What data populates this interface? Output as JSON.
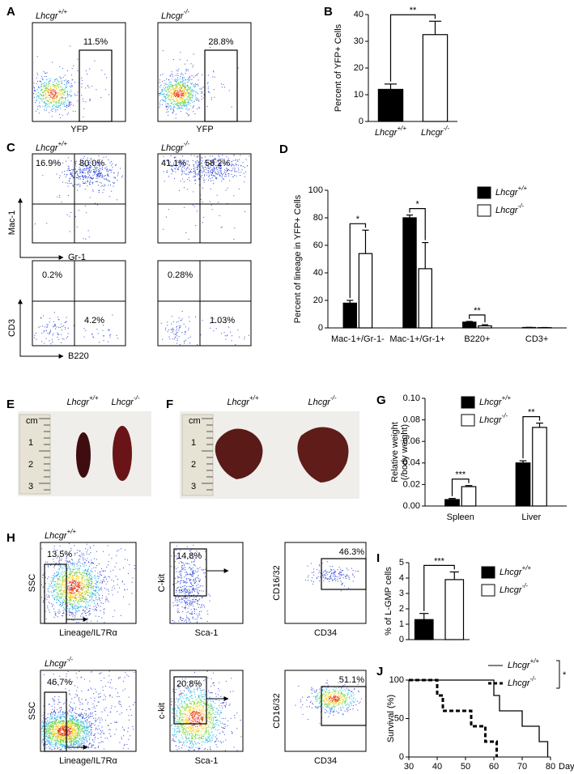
{
  "panel_labels": [
    "A",
    "B",
    "C",
    "D",
    "E",
    "F",
    "G",
    "H",
    "I",
    "J"
  ],
  "panel_a": {
    "genotypes": [
      "Lhcgr+/+",
      "Lhcgr-/-"
    ],
    "gates": [
      "11.5%",
      "28.8%"
    ],
    "x_label": "YFP"
  },
  "panel_c": {
    "genotypes": [
      "Lhcgr+/+",
      "Lhcgr-/-"
    ],
    "top": {
      "y_label": "Mac-1",
      "x_label": "Gr-1",
      "quadrants": [
        [
          "16.9%",
          "80.0%"
        ],
        [
          "41.1%",
          "58.2%"
        ]
      ]
    },
    "bottom": {
      "y_label": "CD3",
      "x_label": "B220",
      "quadrants": [
        [
          "0.2%",
          "4.2%"
        ],
        [
          "0.28%",
          "1.03%"
        ]
      ]
    }
  },
  "panel_e": {
    "genotypes": [
      "Lhcgr+/+",
      "Lhcgr-/-"
    ],
    "ruler": [
      "cm",
      "1",
      "2",
      "3"
    ]
  },
  "panel_f": {
    "genotypes": [
      "Lhcgr+/+",
      "Lhcgr-/-"
    ],
    "ruler": [
      "cm",
      "1",
      "2",
      "3"
    ]
  },
  "panel_h": {
    "rows": [
      {
        "genotype": "Lhcgr+/+",
        "plots": [
          {
            "gate": "13.5%",
            "x_label": "Lineage/IL7Rα",
            "y_label": "SSC"
          },
          {
            "gate": "14.8%",
            "x_label": "Sca-1",
            "y_label": "C-kit"
          },
          {
            "gate": "46.3%",
            "x_label": "CD34",
            "y_label": "CD16/32"
          }
        ]
      },
      {
        "genotype": "Lhcgr-/-",
        "plots": [
          {
            "gate": "46.7%",
            "x_label": "Lineage/IL7Rα",
            "y_label": "SSC"
          },
          {
            "gate": "20.8%",
            "x_label": "Sca-1",
            "y_label": "c-kit"
          },
          {
            "gate": "51.1%",
            "x_label": "CD34",
            "y_label": "CD16/32"
          }
        ]
      }
    ]
  },
  "chart_data": [
    {
      "type": "bar",
      "ylabel": "Percent of YFP+ Cells",
      "categories": [
        "Lhcgr+/+",
        "Lhcgr-/-"
      ],
      "values": [
        12,
        32.5
      ],
      "errors": [
        2,
        5
      ],
      "colors": [
        "#000000",
        "#ffffff"
      ],
      "ylim": [
        0,
        40
      ],
      "yticks": [
        0,
        10,
        20,
        30,
        40
      ],
      "significance": [
        "**"
      ]
    },
    {
      "type": "bar",
      "ylabel": "Percent of lineage in YFP+ Cells",
      "categories": [
        "Mac-1+/Gr-1-",
        "Mac-1+/Gr-1+",
        "B220+",
        "CD3+"
      ],
      "series": [
        {
          "name": "Lhcgr+/+",
          "color": "#000000",
          "values": [
            18,
            80,
            4.2,
            0.3
          ],
          "errors": [
            2,
            2,
            0.5,
            0.1
          ]
        },
        {
          "name": "Lhcgr-/-",
          "color": "#ffffff",
          "values": [
            54,
            43,
            1.5,
            0.2
          ],
          "errors": [
            17,
            19,
            0.8,
            0.1
          ]
        }
      ],
      "ylim": [
        0,
        100
      ],
      "yticks": [
        0,
        20,
        40,
        60,
        80,
        100
      ],
      "significance": [
        "*",
        "*",
        "**"
      ],
      "legend": "upper right"
    },
    {
      "type": "bar",
      "ylabel": [
        "Relative weight",
        "(/body weight)"
      ],
      "categories": [
        "Spleen",
        "Liver"
      ],
      "series": [
        {
          "name": "Lhcgr+/+",
          "color": "#000000",
          "values": [
            0.006,
            0.04
          ],
          "errors": [
            0.001,
            0.002
          ]
        },
        {
          "name": "Lhcgr-/-",
          "color": "#ffffff",
          "values": [
            0.018,
            0.073
          ],
          "errors": [
            0.001,
            0.004
          ]
        }
      ],
      "ylim": [
        0,
        0.1
      ],
      "yticks": [
        {
          "value": 0,
          "label": "0.00"
        },
        0.02,
        0.04,
        0.06,
        0.08,
        {
          "value": 0.1,
          "label": "0.10"
        }
      ],
      "significance": [
        "***",
        "**"
      ],
      "legend": "upper left"
    },
    {
      "type": "bar",
      "ylabel": "% of L-GMP cells",
      "categories": [
        "Lhcgr+/+",
        "Lhcgr-/-"
      ],
      "values": [
        1.3,
        3.9
      ],
      "errors": [
        0.4,
        0.5
      ],
      "colors": [
        "#000000",
        "#ffffff"
      ],
      "ylim": [
        0,
        5
      ],
      "yticks": [
        0,
        1,
        2,
        3,
        4,
        5
      ],
      "significance": [
        "***"
      ],
      "legend": "upper right"
    },
    {
      "type": "line",
      "ylabel": "Survival (%)",
      "xlabel": "Days",
      "series": [
        {
          "name": "Lhcgr+/+",
          "color": "#000000",
          "line_style": "solid",
          "x": [
            30,
            60,
            60,
            62,
            62,
            70,
            70,
            76,
            76,
            79,
            79
          ],
          "values": [
            100,
            100,
            80,
            80,
            60,
            60,
            40,
            40,
            20,
            20,
            0
          ]
        },
        {
          "name": "Lhcgr-/-",
          "color": "#000000",
          "line_style": "dashed",
          "x": [
            30,
            40,
            40,
            42,
            42,
            52,
            52,
            57,
            57,
            61,
            61
          ],
          "values": [
            100,
            100,
            80,
            80,
            60,
            60,
            40,
            40,
            20,
            20,
            0
          ]
        }
      ],
      "xlim": [
        30,
        80
      ],
      "xticks": [
        30,
        40,
        50,
        60,
        70,
        80
      ],
      "ylim": [
        0,
        100
      ],
      "yticks": [
        0,
        50,
        100
      ],
      "significance": [
        "*"
      ],
      "legend": "upper right"
    }
  ]
}
